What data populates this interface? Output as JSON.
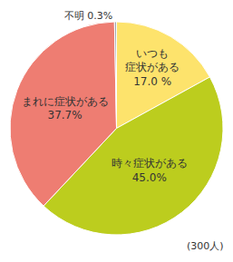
{
  "chart_data": {
    "type": "pie",
    "categories": [
      "いつも\n症状がある",
      "時々症状がある",
      "まれに症状がある",
      "不明"
    ],
    "values": [
      17.0,
      45.0,
      37.7,
      0.3
    ],
    "value_labels": [
      "17.0 %",
      "45.0%",
      "37.7%",
      "0.3%"
    ],
    "colors": [
      "#fde36c",
      "#bccd1e",
      "#ee7d72",
      "#9ea3a8"
    ],
    "data_labels": true,
    "annotations": [
      "(300人)"
    ]
  }
}
